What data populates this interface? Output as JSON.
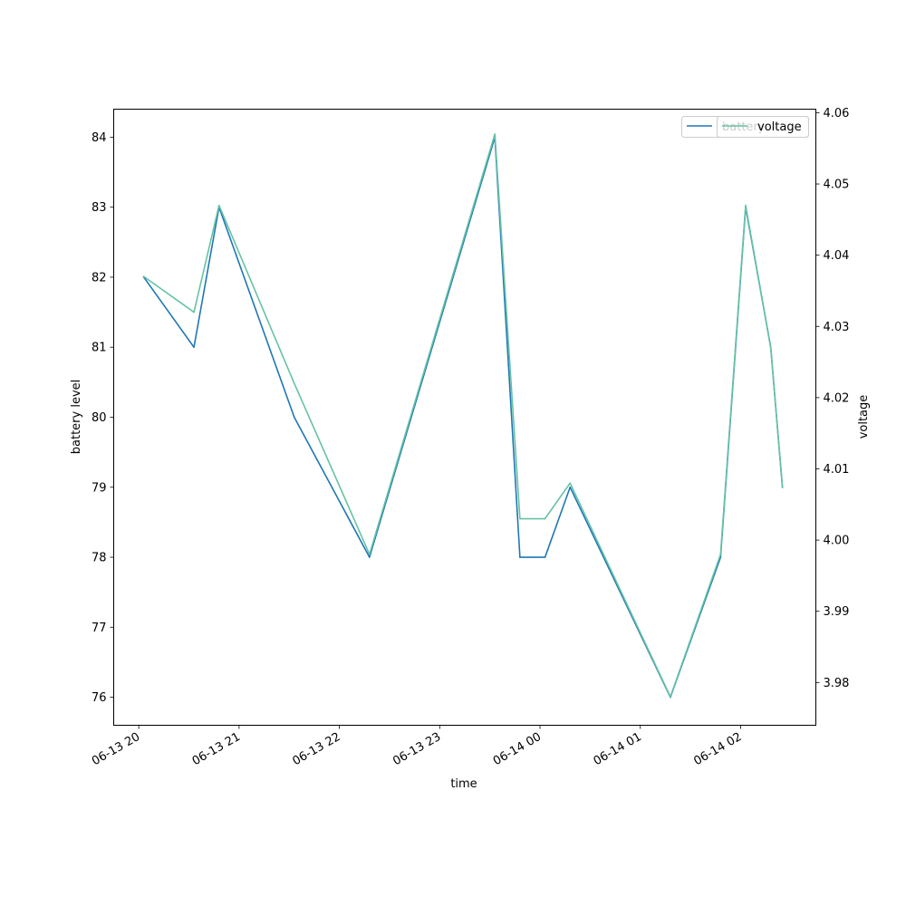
{
  "chart_data": {
    "type": "line",
    "xlabel": "time",
    "ylabel_left": "battery level",
    "ylabel_right": "voltage",
    "x_ticks": [
      "06-13 20",
      "06-13 21",
      "06-13 22",
      "06-13 23",
      "06-14 00",
      "06-14 01",
      "06-14 02"
    ],
    "x_tick_datetimes": [
      "2000-06-13 20:00",
      "2000-06-13 21:00",
      "2000-06-13 22:00",
      "2000-06-13 23:00",
      "2000-06-14 00:00",
      "2000-06-14 01:00",
      "2000-06-14 02:00"
    ],
    "left_yticks": [
      76,
      77,
      78,
      79,
      80,
      81,
      82,
      83,
      84
    ],
    "right_yticks": [
      3.98,
      3.99,
      4.0,
      4.01,
      4.02,
      4.03,
      4.04,
      4.05,
      4.06
    ],
    "xlim": [
      "2000-06-13 19:45",
      "2000-06-14 02:45"
    ],
    "ylim_left": [
      75.6,
      84.4
    ],
    "ylim_right": [
      3.974,
      4.0605
    ],
    "x": [
      "2000-06-13 20:03",
      "2000-06-13 20:33",
      "2000-06-13 20:48",
      "2000-06-13 21:33",
      "2000-06-13 22:18",
      "2000-06-13 23:33",
      "2000-06-13 23:48",
      "2000-06-14 00:03",
      "2000-06-14 00:18",
      "2000-06-14 01:18",
      "2000-06-14 01:48",
      "2000-06-14 02:03",
      "2000-06-14 02:18",
      "2000-06-14 02:25"
    ],
    "series": [
      {
        "name": "battery",
        "axis": "left",
        "color": "#1f77b4",
        "values": [
          82,
          81,
          83,
          80,
          78,
          84,
          78,
          78,
          79,
          76,
          78,
          83,
          81,
          79
        ]
      },
      {
        "name": "voltage",
        "axis": "right",
        "color": "#66c2a5",
        "values": [
          4.037,
          4.032,
          4.047,
          4.022,
          3.998,
          4.057,
          4.003,
          4.003,
          4.008,
          3.978,
          3.998,
          4.047,
          4.027,
          4.0075
        ]
      }
    ],
    "grid": false,
    "legend_position": "top-right"
  }
}
